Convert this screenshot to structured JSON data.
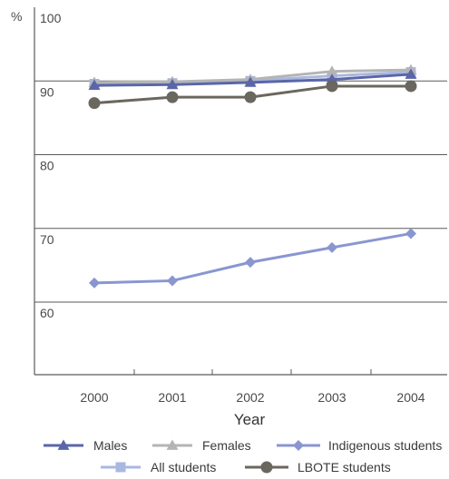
{
  "chart_data": {
    "type": "line",
    "title": "",
    "unit_label": "%",
    "xlabel": "Year",
    "ylabel": "",
    "categories": [
      "2000",
      "2001",
      "2002",
      "2003",
      "2004"
    ],
    "ylim": [
      50,
      100
    ],
    "y_ticks": [
      "100",
      "90",
      "80",
      "70",
      "60"
    ],
    "y_tick_values": [
      100,
      90,
      80,
      70,
      60
    ],
    "grid": "horizontal",
    "legend_position": "bottom",
    "series": [
      {
        "name": "Males",
        "color": "#5a66a8",
        "marker": "triangle",
        "values": [
          89.4,
          89.5,
          89.8,
          90.2,
          90.9
        ]
      },
      {
        "name": "Females",
        "color": "#b4b4b4",
        "marker": "triangle",
        "values": [
          89.8,
          89.9,
          90.2,
          91.3,
          91.5
        ]
      },
      {
        "name": "Indigenous students",
        "color": "#8a96d0",
        "marker": "diamond",
        "values": [
          62.6,
          62.9,
          65.4,
          67.4,
          69.3
        ]
      },
      {
        "name": "All students",
        "color": "#a9b8e0",
        "marker": "square",
        "values": [
          89.6,
          89.7,
          90.0,
          90.7,
          91.2
        ]
      },
      {
        "name": "LBOTE students",
        "color": "#6a675e",
        "marker": "circle",
        "values": [
          87.0,
          87.8,
          87.8,
          89.3,
          89.3
        ]
      }
    ]
  }
}
